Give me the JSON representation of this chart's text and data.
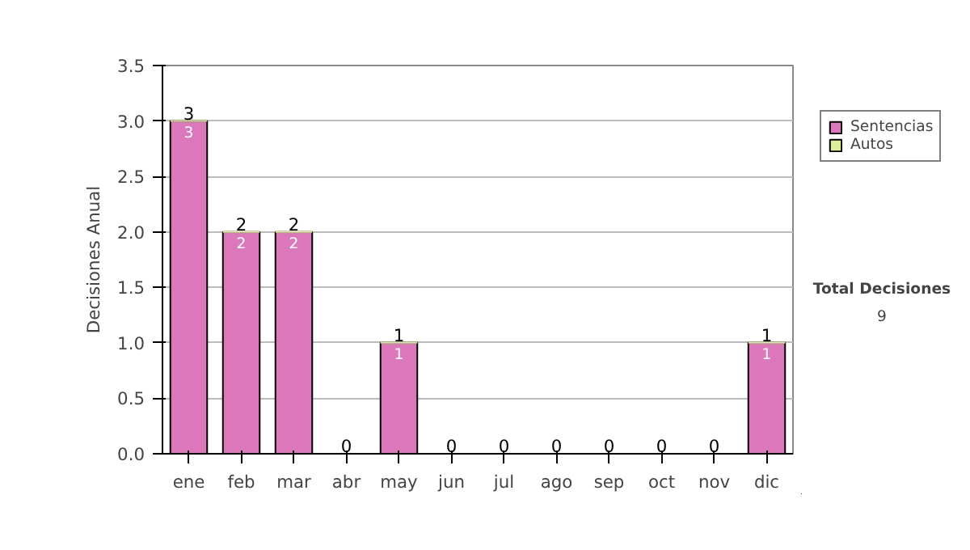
{
  "chart_data": {
    "type": "bar",
    "stacked": true,
    "ylabel": "Decisiones Anual",
    "categories": [
      "ene",
      "feb",
      "mar",
      "abr",
      "may",
      "jun",
      "jul",
      "ago",
      "sep",
      "oct",
      "nov",
      "dic"
    ],
    "series": [
      {
        "name": "Sentencias",
        "color": "#dd77bb",
        "values": [
          3,
          2,
          2,
          0,
          1,
          0,
          0,
          0,
          0,
          0,
          0,
          1
        ],
        "value_labels": [
          "3",
          "2",
          "2",
          null,
          "1",
          null,
          null,
          null,
          null,
          null,
          null,
          "1"
        ]
      },
      {
        "name": "Autos",
        "color": "#ddee99",
        "values": [
          0,
          0,
          0,
          0,
          0,
          0,
          0,
          0,
          0,
          0,
          0,
          0
        ]
      }
    ],
    "totals": [
      "3",
      "2",
      "2",
      "0",
      "1",
      "0",
      "0",
      "0",
      "0",
      "0",
      "0",
      "1"
    ],
    "ylim": [
      0,
      3.5
    ],
    "yticks": [
      {
        "value": 0,
        "label": "0.0"
      },
      {
        "value": 0.5,
        "label": "0.5"
      },
      {
        "value": 1,
        "label": "1.0"
      },
      {
        "value": 1.5,
        "label": "1.5"
      },
      {
        "value": 2,
        "label": "2.0"
      },
      {
        "value": 2.5,
        "label": "2.5"
      },
      {
        "value": 3,
        "label": "3.0"
      },
      {
        "value": 3.5,
        "label": "3.5"
      }
    ],
    "grid": "y",
    "legend": "right",
    "annotations": [
      "Total Decisiones",
      "9"
    ]
  }
}
